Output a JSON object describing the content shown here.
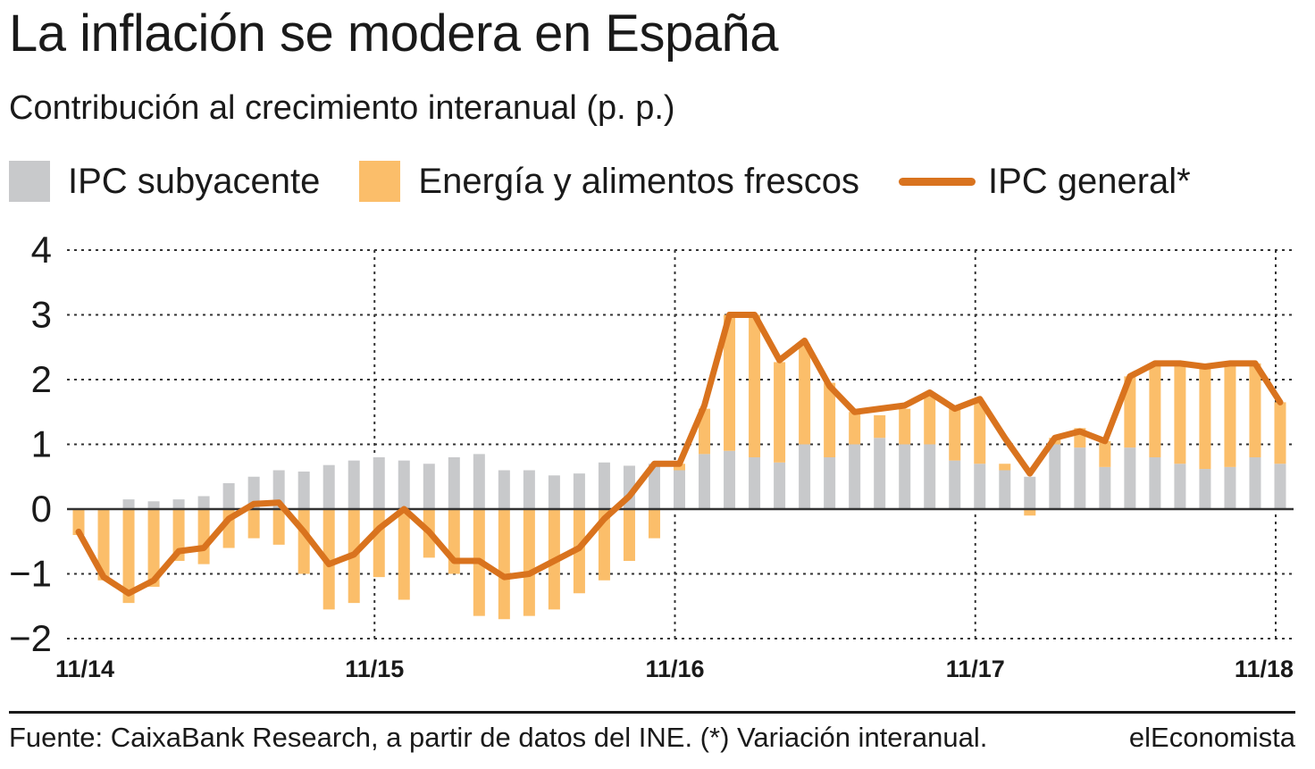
{
  "title": "La inflación se modera en España",
  "subtitle": "Contribución al crecimiento interanual (p. p.)",
  "legend": {
    "core": "IPC subyacente",
    "energy": "Energía y alimentos frescos",
    "general": "IPC general*"
  },
  "colors": {
    "core": "#c8c9cb",
    "energy": "#fbbe6a",
    "general": "#d9731e",
    "grid": "#333333",
    "text": "#1a1a1a"
  },
  "footer": {
    "source": "Fuente: CaixaBank Research, a partir de datos del INE. (*) Variación interanual.",
    "brand": "elEconomista"
  },
  "chart_data": {
    "type": "bar",
    "stacked": true,
    "title": "La inflación se modera en España",
    "ylabel": "Contribución al crecimiento interanual (p. p.)",
    "ylim": [
      -2,
      4
    ],
    "yticks": [
      "4",
      "3",
      "2",
      "1",
      "0",
      "−1",
      "−2"
    ],
    "ytick_values": [
      4,
      3,
      2,
      1,
      0,
      -1,
      -2
    ],
    "xticks": [
      "11/14",
      "11/15",
      "11/16",
      "11/17",
      "11/18"
    ],
    "xtick_indices": [
      0,
      12,
      24,
      36,
      48
    ],
    "x": [
      "11/14",
      "12/14",
      "01/15",
      "02/15",
      "03/15",
      "04/15",
      "05/15",
      "06/15",
      "07/15",
      "08/15",
      "09/15",
      "10/15",
      "11/15",
      "12/15",
      "01/16",
      "02/16",
      "03/16",
      "04/16",
      "05/16",
      "06/16",
      "07/16",
      "08/16",
      "09/16",
      "10/16",
      "11/16",
      "12/16",
      "01/17",
      "02/17",
      "03/17",
      "04/17",
      "05/17",
      "06/17",
      "07/17",
      "08/17",
      "09/17",
      "10/17",
      "11/17",
      "12/17",
      "01/18",
      "02/18",
      "03/18",
      "04/18",
      "05/18",
      "06/18",
      "07/18",
      "08/18",
      "09/18",
      "10/18",
      "11/18"
    ],
    "series": [
      {
        "name": "IPC subyacente",
        "kind": "bar",
        "values": [
          0.0,
          0.0,
          0.15,
          0.12,
          0.15,
          0.2,
          0.4,
          0.5,
          0.6,
          0.58,
          0.68,
          0.75,
          0.8,
          0.75,
          0.7,
          0.8,
          0.85,
          0.6,
          0.6,
          0.52,
          0.55,
          0.72,
          0.67,
          0.7,
          0.6,
          0.85,
          0.9,
          0.8,
          0.72,
          1.0,
          0.8,
          1.0,
          1.1,
          1.0,
          1.0,
          0.75,
          0.7,
          0.6,
          0.5,
          1.0,
          0.95,
          0.65,
          0.95,
          0.8,
          0.7,
          0.62,
          0.65,
          0.8,
          0.7
        ]
      },
      {
        "name": "Energía y alimentos frescos",
        "kind": "bar",
        "values": [
          -0.4,
          -1.1,
          -1.45,
          -1.2,
          -0.8,
          -0.85,
          -0.6,
          -0.45,
          -0.55,
          -1.0,
          -1.55,
          -1.45,
          -1.05,
          -1.4,
          -0.75,
          -1.0,
          -1.65,
          -1.7,
          -1.65,
          -1.55,
          -1.3,
          -1.1,
          -0.8,
          -0.45,
          0.1,
          0.7,
          2.1,
          2.2,
          1.55,
          1.55,
          1.15,
          0.5,
          0.35,
          0.55,
          0.75,
          0.8,
          0.95,
          0.1,
          -0.1,
          0.1,
          0.3,
          0.4,
          1.1,
          1.45,
          1.55,
          1.58,
          1.6,
          1.45,
          0.95
        ]
      },
      {
        "name": "IPC general*",
        "kind": "line",
        "values": [
          -0.35,
          -1.05,
          -1.3,
          -1.1,
          -0.65,
          -0.6,
          -0.15,
          0.08,
          0.1,
          -0.35,
          -0.85,
          -0.7,
          -0.3,
          0.0,
          -0.35,
          -0.8,
          -0.8,
          -1.05,
          -1.0,
          -0.8,
          -0.6,
          -0.15,
          0.2,
          0.7,
          0.7,
          1.6,
          3.0,
          3.0,
          2.3,
          2.6,
          1.9,
          1.5,
          1.55,
          1.6,
          1.8,
          1.55,
          1.7,
          1.1,
          0.55,
          1.1,
          1.2,
          1.05,
          2.05,
          2.25,
          2.25,
          2.2,
          2.25,
          2.25,
          1.65
        ]
      }
    ]
  }
}
